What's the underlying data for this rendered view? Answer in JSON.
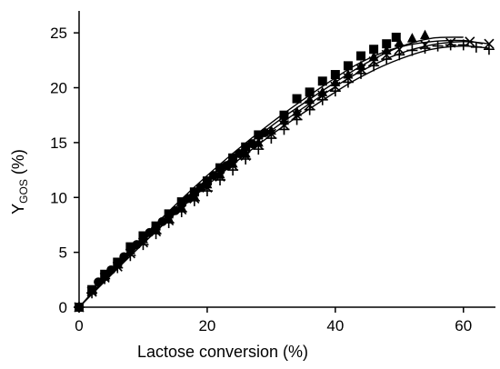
{
  "chart_data": {
    "type": "scatter",
    "title": "",
    "xlabel": "Lactose conversion (%)",
    "ylabel": {
      "main": "Y",
      "sub": "GOS",
      "unit": " (%)"
    },
    "xlim": [
      0,
      65
    ],
    "ylim": [
      0,
      27
    ],
    "xticks": [
      0,
      20,
      40,
      60
    ],
    "yticks": [
      0,
      5,
      10,
      15,
      20,
      25
    ],
    "xtick_labels": [
      "0",
      "20",
      "40",
      "60"
    ],
    "ytick_labels": [
      "0",
      "5",
      "10",
      "15",
      "20",
      "25"
    ],
    "grid": false,
    "legend": "none",
    "series": [
      {
        "marker": "square",
        "x": [
          0,
          2,
          4,
          6,
          8,
          10,
          12,
          14,
          16,
          18,
          20,
          22,
          24,
          26,
          28,
          32,
          34,
          36,
          38,
          40,
          42,
          44,
          46,
          48,
          49.5
        ],
        "y": [
          0,
          1.6,
          3.0,
          4.1,
          5.5,
          6.5,
          7.4,
          8.5,
          9.6,
          10.5,
          11.5,
          12.7,
          13.6,
          14.6,
          15.7,
          17.5,
          19.0,
          19.6,
          20.6,
          21.2,
          22.0,
          22.9,
          23.5,
          24.0,
          24.6
        ],
        "fit_x": [
          0,
          10,
          20,
          30,
          40,
          45,
          50,
          55,
          60,
          63
        ],
        "fit_y": [
          0,
          6.4,
          12.0,
          16.8,
          20.9,
          22.6,
          23.7,
          24.2,
          24.3,
          24.0
        ]
      },
      {
        "marker": "triangle",
        "x": [
          0,
          2,
          4,
          6,
          8,
          10,
          12,
          14,
          16,
          18,
          20,
          22,
          24,
          26,
          28,
          30,
          32,
          34,
          36,
          38,
          40,
          42,
          44,
          46,
          48,
          50,
          52,
          54
        ],
        "y": [
          0,
          1.5,
          2.8,
          3.9,
          5.2,
          6.2,
          7.1,
          8.1,
          9.1,
          10.1,
          11.2,
          12.1,
          13.1,
          14.0,
          15.0,
          16.1,
          17.0,
          17.8,
          18.9,
          19.6,
          20.5,
          21.2,
          22.0,
          22.8,
          23.4,
          24.1,
          24.5,
          24.8
        ],
        "fit_x": [
          0,
          10,
          20,
          30,
          40,
          45,
          50,
          55,
          60
        ],
        "fit_y": [
          0,
          6.2,
          11.7,
          16.5,
          20.5,
          22.3,
          23.7,
          24.5,
          24.6
        ]
      },
      {
        "marker": "cross",
        "x": [
          0,
          2,
          4,
          6,
          8,
          10,
          12,
          14,
          16,
          18,
          20,
          22,
          24,
          26,
          28,
          30,
          32,
          34,
          36,
          38,
          40,
          42,
          44,
          46,
          48,
          50,
          54,
          58,
          61,
          64
        ],
        "y": [
          0,
          1.4,
          2.7,
          3.7,
          4.9,
          5.9,
          6.9,
          7.9,
          8.9,
          9.9,
          10.9,
          11.9,
          12.9,
          13.8,
          14.8,
          15.8,
          16.6,
          17.5,
          18.4,
          19.3,
          20.1,
          20.9,
          21.7,
          22.4,
          23.0,
          23.5,
          23.9,
          24.1,
          24.2,
          24.0
        ],
        "fit_x": [
          0,
          10,
          20,
          30,
          40,
          45,
          50,
          55,
          60,
          64
        ],
        "fit_y": [
          0,
          6.0,
          11.4,
          16.1,
          20.1,
          21.8,
          23.1,
          23.9,
          24.2,
          24.0
        ]
      },
      {
        "marker": "plus",
        "x": [
          0,
          2,
          4,
          6,
          8,
          10,
          12,
          14,
          16,
          18,
          20,
          22,
          24,
          26,
          28,
          30,
          32,
          34,
          36,
          38,
          40,
          42,
          44,
          46,
          48,
          50,
          52,
          54,
          56,
          58,
          60,
          62,
          64
        ],
        "y": [
          0,
          1.3,
          2.6,
          3.6,
          4.7,
          5.7,
          6.7,
          7.7,
          8.7,
          9.7,
          10.6,
          11.6,
          12.5,
          13.5,
          14.4,
          15.4,
          16.2,
          17.1,
          18.0,
          18.9,
          19.7,
          20.5,
          21.3,
          22.0,
          22.6,
          23.0,
          23.4,
          23.6,
          23.8,
          23.9,
          23.9,
          23.7,
          23.5
        ],
        "fit_x": [
          0,
          10,
          20,
          30,
          40,
          45,
          50,
          55,
          60,
          64
        ],
        "fit_y": [
          0,
          5.8,
          11.1,
          15.7,
          19.6,
          21.3,
          22.6,
          23.5,
          23.8,
          23.6
        ]
      },
      {
        "marker": "circle",
        "x": [
          0,
          3,
          5,
          7,
          9,
          11,
          13,
          15,
          17,
          19,
          21,
          23,
          25,
          27,
          29
        ],
        "y": [
          0,
          2.3,
          3.4,
          4.6,
          5.7,
          6.8,
          7.8,
          8.8,
          9.9,
          10.9,
          12.0,
          12.9,
          14.0,
          14.9,
          15.9
        ],
        "fit_x": [],
        "fit_y": []
      }
    ]
  }
}
